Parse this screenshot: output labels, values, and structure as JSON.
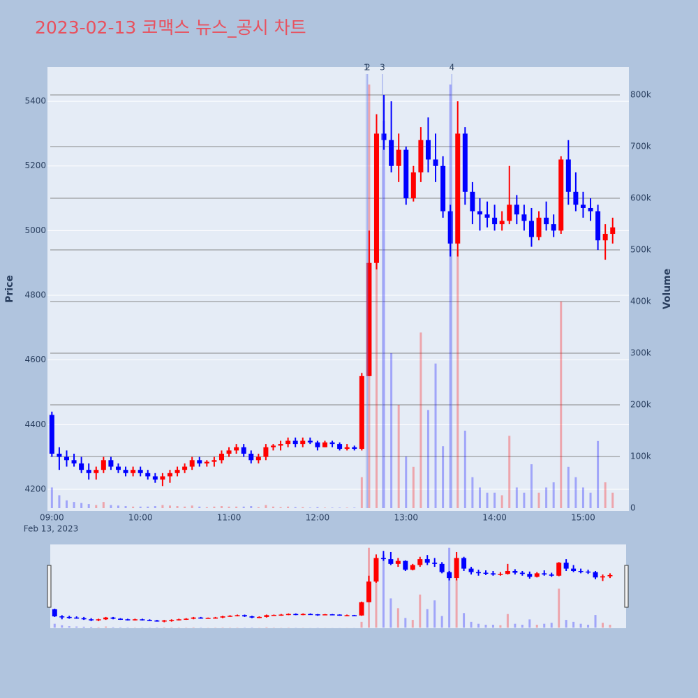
{
  "chart_data": {
    "type": "candlestick",
    "title": "2023-02-13 코맥스 뉴스_공시 차트",
    "y_label": "Price",
    "y2_label": "Volume",
    "x_date_label": "Feb 13, 2023",
    "increasing_color": "#ff0000",
    "decreasing_color": "#0000ff",
    "x": [
      "09:00",
      "09:05",
      "09:10",
      "09:15",
      "09:20",
      "09:25",
      "09:30",
      "09:35",
      "09:40",
      "09:45",
      "09:50",
      "09:55",
      "10:00",
      "10:05",
      "10:10",
      "10:15",
      "10:20",
      "10:25",
      "10:30",
      "10:35",
      "10:40",
      "10:45",
      "10:50",
      "10:55",
      "11:00",
      "11:05",
      "11:10",
      "11:15",
      "11:20",
      "11:25",
      "11:30",
      "11:35",
      "11:40",
      "11:45",
      "11:50",
      "11:55",
      "12:00",
      "12:05",
      "12:10",
      "12:15",
      "12:20",
      "12:25",
      "12:30",
      "12:35",
      "12:40",
      "12:45",
      "12:50",
      "12:55",
      "13:00",
      "13:05",
      "13:10",
      "13:15",
      "13:20",
      "13:25",
      "13:30",
      "13:35",
      "13:40",
      "13:45",
      "13:50",
      "13:55",
      "14:00",
      "14:05",
      "14:10",
      "14:15",
      "14:20",
      "14:25",
      "14:30",
      "14:35",
      "14:40",
      "14:45",
      "14:50",
      "14:55",
      "15:00",
      "15:05",
      "15:10",
      "15:15",
      "15:20"
    ],
    "open": [
      4430,
      4310,
      4300,
      4290,
      4280,
      4260,
      4250,
      4260,
      4290,
      4270,
      4260,
      4250,
      4260,
      4250,
      4240,
      4230,
      4240,
      4250,
      4260,
      4270,
      4290,
      4280,
      4285,
      4290,
      4310,
      4320,
      4330,
      4310,
      4290,
      4300,
      4330,
      4335,
      4340,
      4350,
      4340,
      4350,
      4345,
      4330,
      4345,
      4340,
      4325,
      4330,
      4325,
      4550,
      4900,
      5300,
      5280,
      5200,
      5250,
      5100,
      5180,
      5280,
      5220,
      5200,
      5060,
      4960,
      5300,
      5120,
      5060,
      5050,
      5040,
      5020,
      5030,
      5080,
      5050,
      5030,
      4980,
      5040,
      5020,
      5000,
      5220,
      5120,
      5080,
      5070,
      5060,
      4970,
      4990
    ],
    "high": [
      4440,
      4330,
      4320,
      4310,
      4300,
      4280,
      4270,
      4300,
      4300,
      4280,
      4270,
      4270,
      4270,
      4260,
      4250,
      4250,
      4260,
      4270,
      4280,
      4300,
      4300,
      4290,
      4300,
      4320,
      4330,
      4340,
      4340,
      4320,
      4310,
      4340,
      4340,
      4350,
      4360,
      4360,
      4360,
      4360,
      4350,
      4350,
      4350,
      4345,
      4340,
      4335,
      4560,
      5000,
      5360,
      5420,
      5400,
      5300,
      5260,
      5200,
      5320,
      5350,
      5300,
      5230,
      5080,
      5400,
      5320,
      5150,
      5100,
      5090,
      5080,
      5060,
      5200,
      5110,
      5080,
      5070,
      5060,
      5090,
      5050,
      5230,
      5280,
      5180,
      5120,
      5100,
      5080,
      5020,
      5040
    ],
    "low": [
      4300,
      4260,
      4270,
      4270,
      4250,
      4230,
      4230,
      4250,
      4260,
      4250,
      4240,
      4240,
      4240,
      4230,
      4220,
      4210,
      4220,
      4240,
      4250,
      4260,
      4270,
      4270,
      4270,
      4280,
      4300,
      4310,
      4300,
      4280,
      4280,
      4290,
      4320,
      4320,
      4330,
      4330,
      4330,
      4340,
      4320,
      4330,
      4330,
      4320,
      4320,
      4320,
      4320,
      4550,
      4880,
      5250,
      5180,
      5150,
      5080,
      5090,
      5150,
      5180,
      5150,
      5040,
      4920,
      4920,
      5080,
      5020,
      5000,
      5010,
      5000,
      5000,
      5020,
      5020,
      5000,
      4950,
      4970,
      5000,
      4980,
      4990,
      5080,
      5060,
      5040,
      5030,
      4940,
      4910,
      4960
    ],
    "close": [
      4310,
      4300,
      4290,
      4280,
      4260,
      4250,
      4260,
      4290,
      4270,
      4260,
      4250,
      4260,
      4250,
      4240,
      4230,
      4240,
      4250,
      4260,
      4270,
      4290,
      4280,
      4285,
      4290,
      4310,
      4320,
      4330,
      4310,
      4290,
      4300,
      4330,
      4335,
      4340,
      4350,
      4340,
      4350,
      4345,
      4330,
      4345,
      4340,
      4325,
      4330,
      4325,
      4550,
      4900,
      5300,
      5280,
      5200,
      5250,
      5100,
      5180,
      5280,
      5220,
      5200,
      5060,
      4960,
      5300,
      5120,
      5060,
      5050,
      5040,
      5020,
      5030,
      5080,
      5050,
      5030,
      4980,
      5040,
      5020,
      5000,
      5220,
      5120,
      5080,
      5070,
      5060,
      4970,
      4990,
      5010
    ],
    "volume": [
      40000,
      25000,
      15000,
      12000,
      10000,
      8000,
      6000,
      12000,
      6000,
      5000,
      4000,
      3000,
      3000,
      3000,
      4000,
      6000,
      5000,
      4000,
      3000,
      5000,
      3000,
      2000,
      3000,
      4000,
      3000,
      3000,
      3000,
      4000,
      2000,
      6000,
      3000,
      2000,
      3000,
      2000,
      2000,
      1000,
      2000,
      1000,
      1000,
      1000,
      1000,
      1000,
      60000,
      820000,
      600000,
      750000,
      300000,
      200000,
      100000,
      80000,
      340000,
      190000,
      280000,
      120000,
      820000,
      500000,
      150000,
      60000,
      40000,
      30000,
      30000,
      25000,
      140000,
      40000,
      30000,
      85000,
      30000,
      40000,
      50000,
      400000,
      80000,
      60000,
      40000,
      30000,
      130000,
      50000,
      30000
    ],
    "xlim": [
      "08:57",
      "15:31"
    ],
    "xticks": [
      "09:00",
      "10:00",
      "11:00",
      "12:00",
      "13:00",
      "14:00",
      "15:00"
    ],
    "ylim": [
      4133,
      5506
    ],
    "yticks": [
      4200,
      4400,
      4600,
      4800,
      5000,
      5200,
      5400
    ],
    "y2lim": [
      -5400,
      854000
    ],
    "y2ticks": [
      0,
      {
        "value": 100000,
        "label": "100k"
      },
      {
        "value": 200000,
        "label": "200k"
      },
      {
        "value": 300000,
        "label": "300k"
      },
      {
        "value": 400000,
        "label": "400k"
      },
      {
        "value": 500000,
        "label": "500k"
      },
      {
        "value": 600000,
        "label": "600k"
      },
      {
        "value": 700000,
        "label": "700k"
      },
      {
        "value": 800000,
        "label": "800k"
      }
    ],
    "annotations": [
      {
        "x": "12:33",
        "label": "1"
      },
      {
        "x": "12:34",
        "label": "2"
      },
      {
        "x": "12:44",
        "label": "3"
      },
      {
        "x": "13:31",
        "label": "4"
      }
    ]
  }
}
